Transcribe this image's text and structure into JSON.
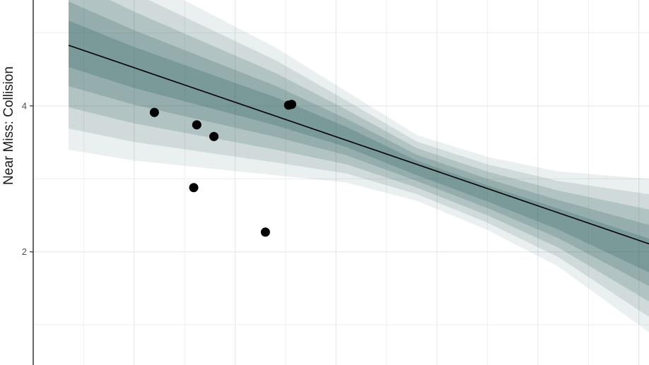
{
  "chart_data": {
    "type": "scatter",
    "title": "",
    "xlabel": "",
    "ylabel": "Near Miss: Collision",
    "yticks": [
      2,
      4
    ],
    "ylim": [
      0.45,
      5.45
    ],
    "xlim": [
      0,
      6.1
    ],
    "grid": true,
    "points": [
      {
        "x": 1.2,
        "y": 3.91
      },
      {
        "x": 1.62,
        "y": 3.74
      },
      {
        "x": 1.79,
        "y": 3.58
      },
      {
        "x": 1.59,
        "y": 2.88
      },
      {
        "x": 2.3,
        "y": 2.27
      },
      {
        "x": 2.53,
        "y": 4.01
      },
      {
        "x": 2.56,
        "y": 4.02
      }
    ],
    "fit_line": {
      "x": [
        0.35,
        6.1
      ],
      "y": [
        4.83,
        2.11
      ]
    },
    "posterior_band": {
      "x": [
        0.35,
        1.0,
        1.7,
        2.4,
        3.1,
        3.8,
        4.5,
        5.2,
        6.1
      ],
      "lower": [
        3.4,
        3.25,
        3.15,
        3.05,
        2.95,
        2.7,
        2.3,
        1.8,
        0.9
      ],
      "upper": [
        6.3,
        5.8,
        5.3,
        4.8,
        4.2,
        3.6,
        3.3,
        3.1,
        3.0
      ],
      "color": "#2f5f5f"
    },
    "colors": {
      "point": "#000000",
      "line": "#000000",
      "grid": "#ebebeb"
    }
  }
}
